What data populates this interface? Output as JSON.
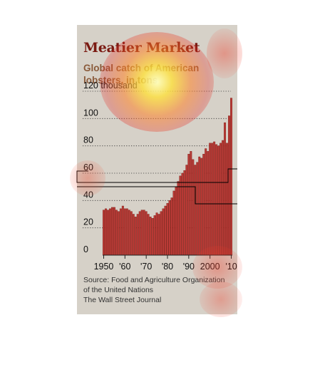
{
  "chart_data": {
    "type": "bar",
    "title": "Meatier Market",
    "subtitle_lines": [
      "Global catch of American",
      "lobsters, in tons"
    ],
    "ytick_labels": [
      "0",
      "20",
      "40",
      "60",
      "80",
      "100",
      "120 thousand"
    ],
    "yticks": [
      0,
      20,
      40,
      60,
      80,
      100,
      120
    ],
    "ylim": [
      0,
      120
    ],
    "xlim": [
      1950,
      2010
    ],
    "xtick_labels": [
      "1950",
      "'60",
      "'70",
      "'80",
      "'90",
      "2000",
      "'10"
    ],
    "xticks": [
      1950,
      1960,
      1970,
      1980,
      1990,
      2000,
      2010
    ],
    "grid": true,
    "x": [
      1950,
      1951,
      1952,
      1953,
      1954,
      1955,
      1956,
      1957,
      1958,
      1959,
      1960,
      1961,
      1962,
      1963,
      1964,
      1965,
      1966,
      1967,
      1968,
      1969,
      1970,
      1971,
      1972,
      1973,
      1974,
      1975,
      1976,
      1977,
      1978,
      1979,
      1980,
      1981,
      1982,
      1983,
      1984,
      1985,
      1986,
      1987,
      1988,
      1989,
      1990,
      1991,
      1992,
      1993,
      1994,
      1995,
      1996,
      1997,
      1998,
      1999,
      2000,
      2001,
      2002,
      2003,
      2004,
      2005,
      2006,
      2007,
      2008,
      2009,
      2010
    ],
    "values": [
      33,
      34,
      33,
      34,
      35,
      35,
      33,
      32,
      34,
      36,
      34,
      34,
      33,
      32,
      30,
      28,
      30,
      32,
      33,
      33,
      32,
      30,
      28,
      27,
      29,
      31,
      30,
      32,
      34,
      36,
      38,
      40,
      42,
      47,
      50,
      54,
      58,
      60,
      62,
      66,
      74,
      76,
      70,
      66,
      68,
      72,
      71,
      74,
      78,
      76,
      82,
      82,
      83,
      81,
      80,
      82,
      84,
      97,
      82,
      102,
      115
    ],
    "sources": [
      "Source: Food and Agriculture Organization",
      "of the United Nations",
      "The Wall Street Journal"
    ],
    "colors": {
      "bar": "#b93a36",
      "bar_edge": "#7a1a12",
      "title": "#7a1a12",
      "background": "#d6d1c8"
    }
  }
}
